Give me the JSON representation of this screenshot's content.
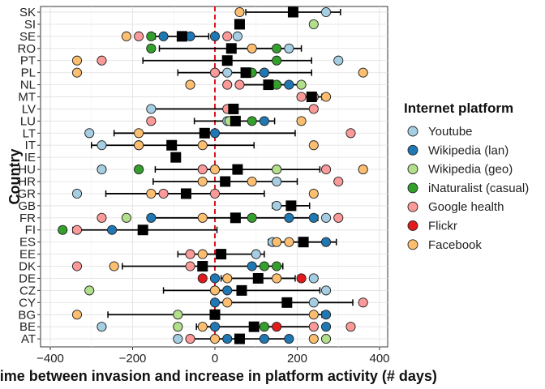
{
  "chart_data": {
    "type": "scatter",
    "xlabel": "Time between invasion and increase in platform activity (# days)",
    "ylabel": "Country",
    "xlim": [
      -400,
      400
    ],
    "x_ticks": [
      -400,
      -200,
      0,
      200,
      400
    ],
    "reference_line_x": 0,
    "grid": true,
    "legend_position": "right",
    "legend_title": "Internet platform",
    "countries": [
      "SK",
      "SI",
      "SE",
      "RO",
      "PT",
      "PL",
      "NL",
      "MT",
      "LV",
      "LU",
      "LT",
      "IT",
      "IE",
      "HU",
      "HR",
      "GR",
      "GB",
      "FR",
      "FI",
      "ES",
      "EE",
      "DK",
      "DE",
      "CZ",
      "CY",
      "BG",
      "BE",
      "AT"
    ],
    "series": [
      {
        "name": "Youtube",
        "color": "#a6cee3",
        "points": [
          {
            "country": "SK",
            "x": 270
          },
          {
            "country": "SE",
            "x": 55
          },
          {
            "country": "RO",
            "x": 180
          },
          {
            "country": "PT",
            "x": 300
          },
          {
            "country": "PL",
            "x": 30
          },
          {
            "country": "PL",
            "x": 120
          },
          {
            "country": "MT",
            "x": 240
          },
          {
            "country": "LV",
            "x": -155
          },
          {
            "country": "LU",
            "x": 30
          },
          {
            "country": "LT",
            "x": -305
          },
          {
            "country": "IT",
            "x": -275
          },
          {
            "country": "HU",
            "x": -275
          },
          {
            "country": "HR",
            "x": 150
          },
          {
            "country": "GR",
            "x": -335
          },
          {
            "country": "GB",
            "x": 150
          },
          {
            "country": "FR",
            "x": 270
          },
          {
            "country": "ES",
            "x": 140
          },
          {
            "country": "EE",
            "x": 100
          },
          {
            "country": "DE",
            "x": 240
          },
          {
            "country": "CZ",
            "x": 270
          },
          {
            "country": "CY",
            "x": 240
          },
          {
            "country": "BE",
            "x": -275
          },
          {
            "country": "AT",
            "x": -90
          }
        ]
      },
      {
        "name": "Wikipedia (lan)",
        "color": "#1f78b4",
        "points": [
          {
            "country": "SE",
            "x": -125
          },
          {
            "country": "SE",
            "x": -60
          },
          {
            "country": "SE",
            "x": 0
          },
          {
            "country": "PL",
            "x": 0
          },
          {
            "country": "PL",
            "x": 120
          },
          {
            "country": "NL",
            "x": 180
          },
          {
            "country": "LU",
            "x": 120
          },
          {
            "country": "LT",
            "x": 0
          },
          {
            "country": "FR",
            "x": -155
          },
          {
            "country": "FR",
            "x": 180
          },
          {
            "country": "FR",
            "x": 240
          },
          {
            "country": "FI",
            "x": -250
          },
          {
            "country": "ES",
            "x": 270
          },
          {
            "country": "DK",
            "x": 90
          },
          {
            "country": "DE",
            "x": 0
          },
          {
            "country": "CZ",
            "x": 0
          },
          {
            "country": "CZ",
            "x": 30
          },
          {
            "country": "CY",
            "x": 0
          },
          {
            "country": "BG",
            "x": 270
          },
          {
            "country": "BE",
            "x": 0
          },
          {
            "country": "BE",
            "x": 270
          },
          {
            "country": "AT",
            "x": 30
          },
          {
            "country": "AT",
            "x": 120
          },
          {
            "country": "AT",
            "x": 180
          }
        ]
      },
      {
        "name": "Wikipedia (geo)",
        "color": "#b2df8a",
        "points": [
          {
            "country": "SI",
            "x": 240
          },
          {
            "country": "NL",
            "x": 210
          },
          {
            "country": "LU",
            "x": 35
          },
          {
            "country": "HU",
            "x": 55
          },
          {
            "country": "HU",
            "x": 150
          },
          {
            "country": "FR",
            "x": -215
          },
          {
            "country": "CZ",
            "x": -305
          },
          {
            "country": "BG",
            "x": -90
          },
          {
            "country": "BE",
            "x": -90
          },
          {
            "country": "AT",
            "x": 270
          }
        ]
      },
      {
        "name": "iNaturalist (casual)",
        "color": "#33a02c",
        "points": [
          {
            "country": "SE",
            "x": -155
          },
          {
            "country": "RO",
            "x": -155
          },
          {
            "country": "RO",
            "x": 150
          },
          {
            "country": "PT",
            "x": 150
          },
          {
            "country": "PL",
            "x": 90
          },
          {
            "country": "NL",
            "x": 150
          },
          {
            "country": "LU",
            "x": 90
          },
          {
            "country": "HU",
            "x": -185
          },
          {
            "country": "FR",
            "x": 90
          },
          {
            "country": "FI",
            "x": -370
          },
          {
            "country": "DK",
            "x": 120
          },
          {
            "country": "DK",
            "x": 150
          },
          {
            "country": "BE",
            "x": 120
          }
        ]
      },
      {
        "name": "Google health",
        "color": "#fb9a99",
        "points": [
          {
            "country": "SE",
            "x": -185
          },
          {
            "country": "SE",
            "x": 30
          },
          {
            "country": "PT",
            "x": -275
          },
          {
            "country": "PL",
            "x": 0
          },
          {
            "country": "NL",
            "x": 30
          },
          {
            "country": "NL",
            "x": 60
          },
          {
            "country": "MT",
            "x": 240
          },
          {
            "country": "MT",
            "x": 210
          },
          {
            "country": "LV",
            "x": 30
          },
          {
            "country": "LV",
            "x": 240
          },
          {
            "country": "LU",
            "x": -155
          },
          {
            "country": "LT",
            "x": 330
          },
          {
            "country": "IT",
            "x": -185
          },
          {
            "country": "HU",
            "x": -30
          },
          {
            "country": "HU",
            "x": 270
          },
          {
            "country": "HR",
            "x": 300
          },
          {
            "country": "GR",
            "x": -125
          },
          {
            "country": "GR",
            "x": 0
          },
          {
            "country": "FR",
            "x": -275
          },
          {
            "country": "FR",
            "x": 300
          },
          {
            "country": "FI",
            "x": -335
          },
          {
            "country": "EE",
            "x": -60
          },
          {
            "country": "DK",
            "x": -335
          },
          {
            "country": "DK",
            "x": -60
          },
          {
            "country": "CY",
            "x": 360
          },
          {
            "country": "BE",
            "x": 240
          },
          {
            "country": "BE",
            "x": 330
          },
          {
            "country": "AT",
            "x": -60
          }
        ]
      },
      {
        "name": "Flickr",
        "color": "#e31a1c",
        "points": [
          {
            "country": "DE",
            "x": -30
          },
          {
            "country": "DE",
            "x": 210
          },
          {
            "country": "BE",
            "x": 150
          }
        ]
      },
      {
        "name": "Facebook",
        "color": "#fdbf6f",
        "points": [
          {
            "country": "SK",
            "x": 60
          },
          {
            "country": "SI",
            "x": 60
          },
          {
            "country": "SE",
            "x": -215
          },
          {
            "country": "RO",
            "x": 90
          },
          {
            "country": "PT",
            "x": -335
          },
          {
            "country": "PL",
            "x": -335
          },
          {
            "country": "PL",
            "x": 360
          },
          {
            "country": "NL",
            "x": -60
          },
          {
            "country": "MT",
            "x": 270
          },
          {
            "country": "LU",
            "x": 210
          },
          {
            "country": "LT",
            "x": -185
          },
          {
            "country": "IT",
            "x": -185
          },
          {
            "country": "IT",
            "x": -30
          },
          {
            "country": "IT",
            "x": 240
          },
          {
            "country": "HU",
            "x": 0
          },
          {
            "country": "HU",
            "x": 360
          },
          {
            "country": "HR",
            "x": -30
          },
          {
            "country": "HR",
            "x": 90
          },
          {
            "country": "GR",
            "x": -155
          },
          {
            "country": "GR",
            "x": 240
          },
          {
            "country": "FR",
            "x": -30
          },
          {
            "country": "ES",
            "x": 150
          },
          {
            "country": "ES",
            "x": 180
          },
          {
            "country": "EE",
            "x": -30
          },
          {
            "country": "DK",
            "x": -245
          },
          {
            "country": "DE",
            "x": 30
          },
          {
            "country": "DE",
            "x": 150
          },
          {
            "country": "CZ",
            "x": 0
          },
          {
            "country": "CY",
            "x": 30
          },
          {
            "country": "BG",
            "x": -335
          },
          {
            "country": "BG",
            "x": 0
          },
          {
            "country": "BG",
            "x": 240
          },
          {
            "country": "BE",
            "x": -30
          },
          {
            "country": "AT",
            "x": 0
          },
          {
            "country": "AT",
            "x": 240
          }
        ]
      }
    ],
    "summary": [
      {
        "country": "SK",
        "mean": 190,
        "lo": 75,
        "hi": 305
      },
      {
        "country": "SI",
        "mean": 60,
        "lo": 60,
        "hi": 60
      },
      {
        "country": "SE",
        "mean": -80,
        "lo": -145,
        "hi": -15
      },
      {
        "country": "RO",
        "mean": 40,
        "lo": -135,
        "hi": 210
      },
      {
        "country": "PT",
        "mean": 30,
        "lo": -175,
        "hi": 235
      },
      {
        "country": "PL",
        "mean": 75,
        "lo": -90,
        "hi": 235
      },
      {
        "country": "NL",
        "mean": 130,
        "lo": 55,
        "hi": 205
      },
      {
        "country": "MT",
        "mean": 235,
        "lo": 210,
        "hi": 260
      },
      {
        "country": "LV",
        "mean": 45,
        "lo": -155,
        "hi": 245
      },
      {
        "country": "LU",
        "mean": 50,
        "lo": -50,
        "hi": 145
      },
      {
        "country": "LT",
        "mean": -25,
        "lo": -245,
        "hi": 195
      },
      {
        "country": "IT",
        "mean": -105,
        "lo": -300,
        "hi": 95
      },
      {
        "country": "IE",
        "mean": -95,
        "lo": -95,
        "hi": -95
      },
      {
        "country": "HU",
        "mean": 55,
        "lo": -145,
        "hi": 255
      },
      {
        "country": "HR",
        "mean": 25,
        "lo": -150,
        "hi": 200
      },
      {
        "country": "GR",
        "mean": -70,
        "lo": -265,
        "hi": 120
      },
      {
        "country": "GB",
        "mean": 185,
        "lo": 140,
        "hi": 230
      },
      {
        "country": "FR",
        "mean": 50,
        "lo": -150,
        "hi": 250
      },
      {
        "country": "FI",
        "mean": -175,
        "lo": -345,
        "hi": 5
      },
      {
        "country": "ES",
        "mean": 215,
        "lo": 130,
        "hi": 295
      },
      {
        "country": "EE",
        "mean": 15,
        "lo": -90,
        "hi": 120
      },
      {
        "country": "DK",
        "mean": -30,
        "lo": -225,
        "hi": 165
      },
      {
        "country": "DE",
        "mean": 105,
        "lo": 15,
        "hi": 195
      },
      {
        "country": "CZ",
        "mean": 65,
        "lo": -125,
        "hi": 255
      },
      {
        "country": "CY",
        "mean": 175,
        "lo": -5,
        "hi": 335
      },
      {
        "country": "BG",
        "mean": 0,
        "lo": -260,
        "hi": 260
      },
      {
        "country": "BE",
        "mean": 95,
        "lo": -45,
        "hi": 235
      },
      {
        "country": "AT",
        "mean": 60,
        "lo": -60,
        "hi": 180
      }
    ]
  }
}
